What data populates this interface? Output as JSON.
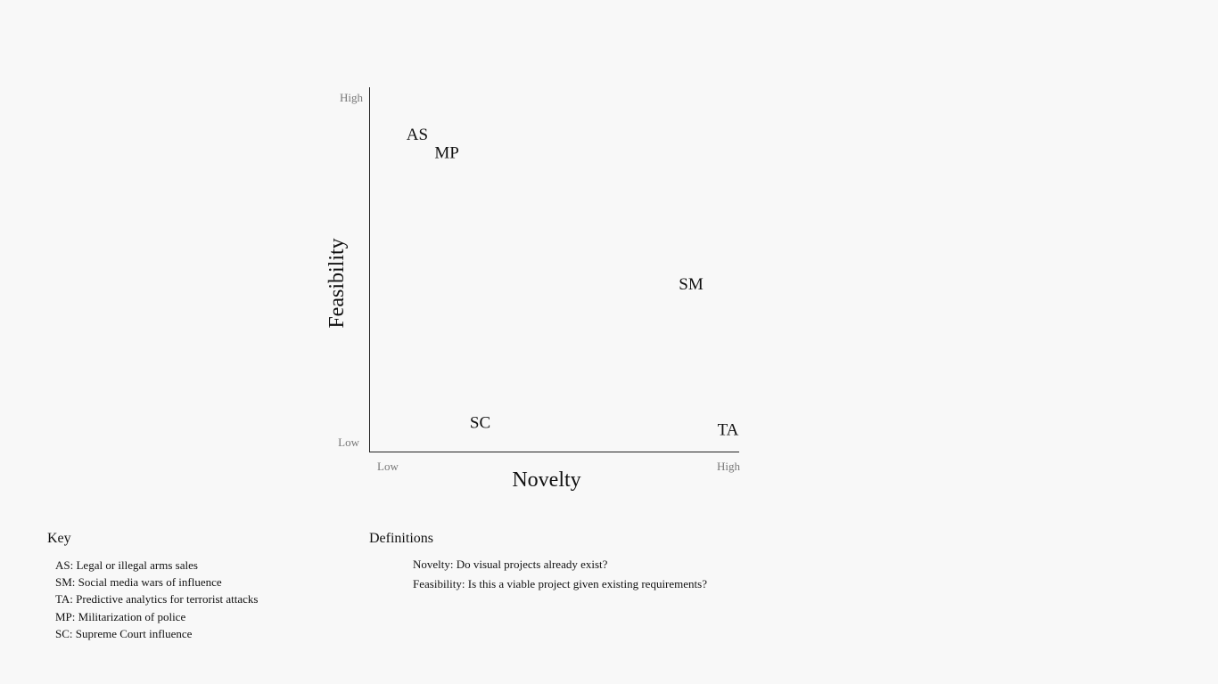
{
  "chart_data": {
    "type": "scatter",
    "xlabel": "Novelty",
    "ylabel": "Feasibility",
    "xlim": [
      0,
      100
    ],
    "ylim": [
      0,
      100
    ],
    "x_ticks": [
      "Low",
      "High"
    ],
    "y_ticks": [
      "Low",
      "High"
    ],
    "grid": false,
    "points": [
      {
        "label": "AS",
        "x": 13,
        "y": 87
      },
      {
        "label": "MP",
        "x": 21,
        "y": 82
      },
      {
        "label": "SM",
        "x": 87,
        "y": 46
      },
      {
        "label": "SC",
        "x": 30,
        "y": 8
      },
      {
        "label": "TA",
        "x": 97,
        "y": 6
      }
    ]
  },
  "key": {
    "title": "Key",
    "items": [
      "AS: Legal or illegal arms sales",
      "SM: Social media wars of influence",
      "TA: Predictive analytics for terrorist attacks",
      "MP: Militarization of police",
      "SC: Supreme Court influence"
    ]
  },
  "definitions": {
    "title": "Definitions",
    "items": [
      "Novelty: Do visual projects already exist?",
      "Feasibility: Is this a viable project given existing requirements?"
    ]
  }
}
